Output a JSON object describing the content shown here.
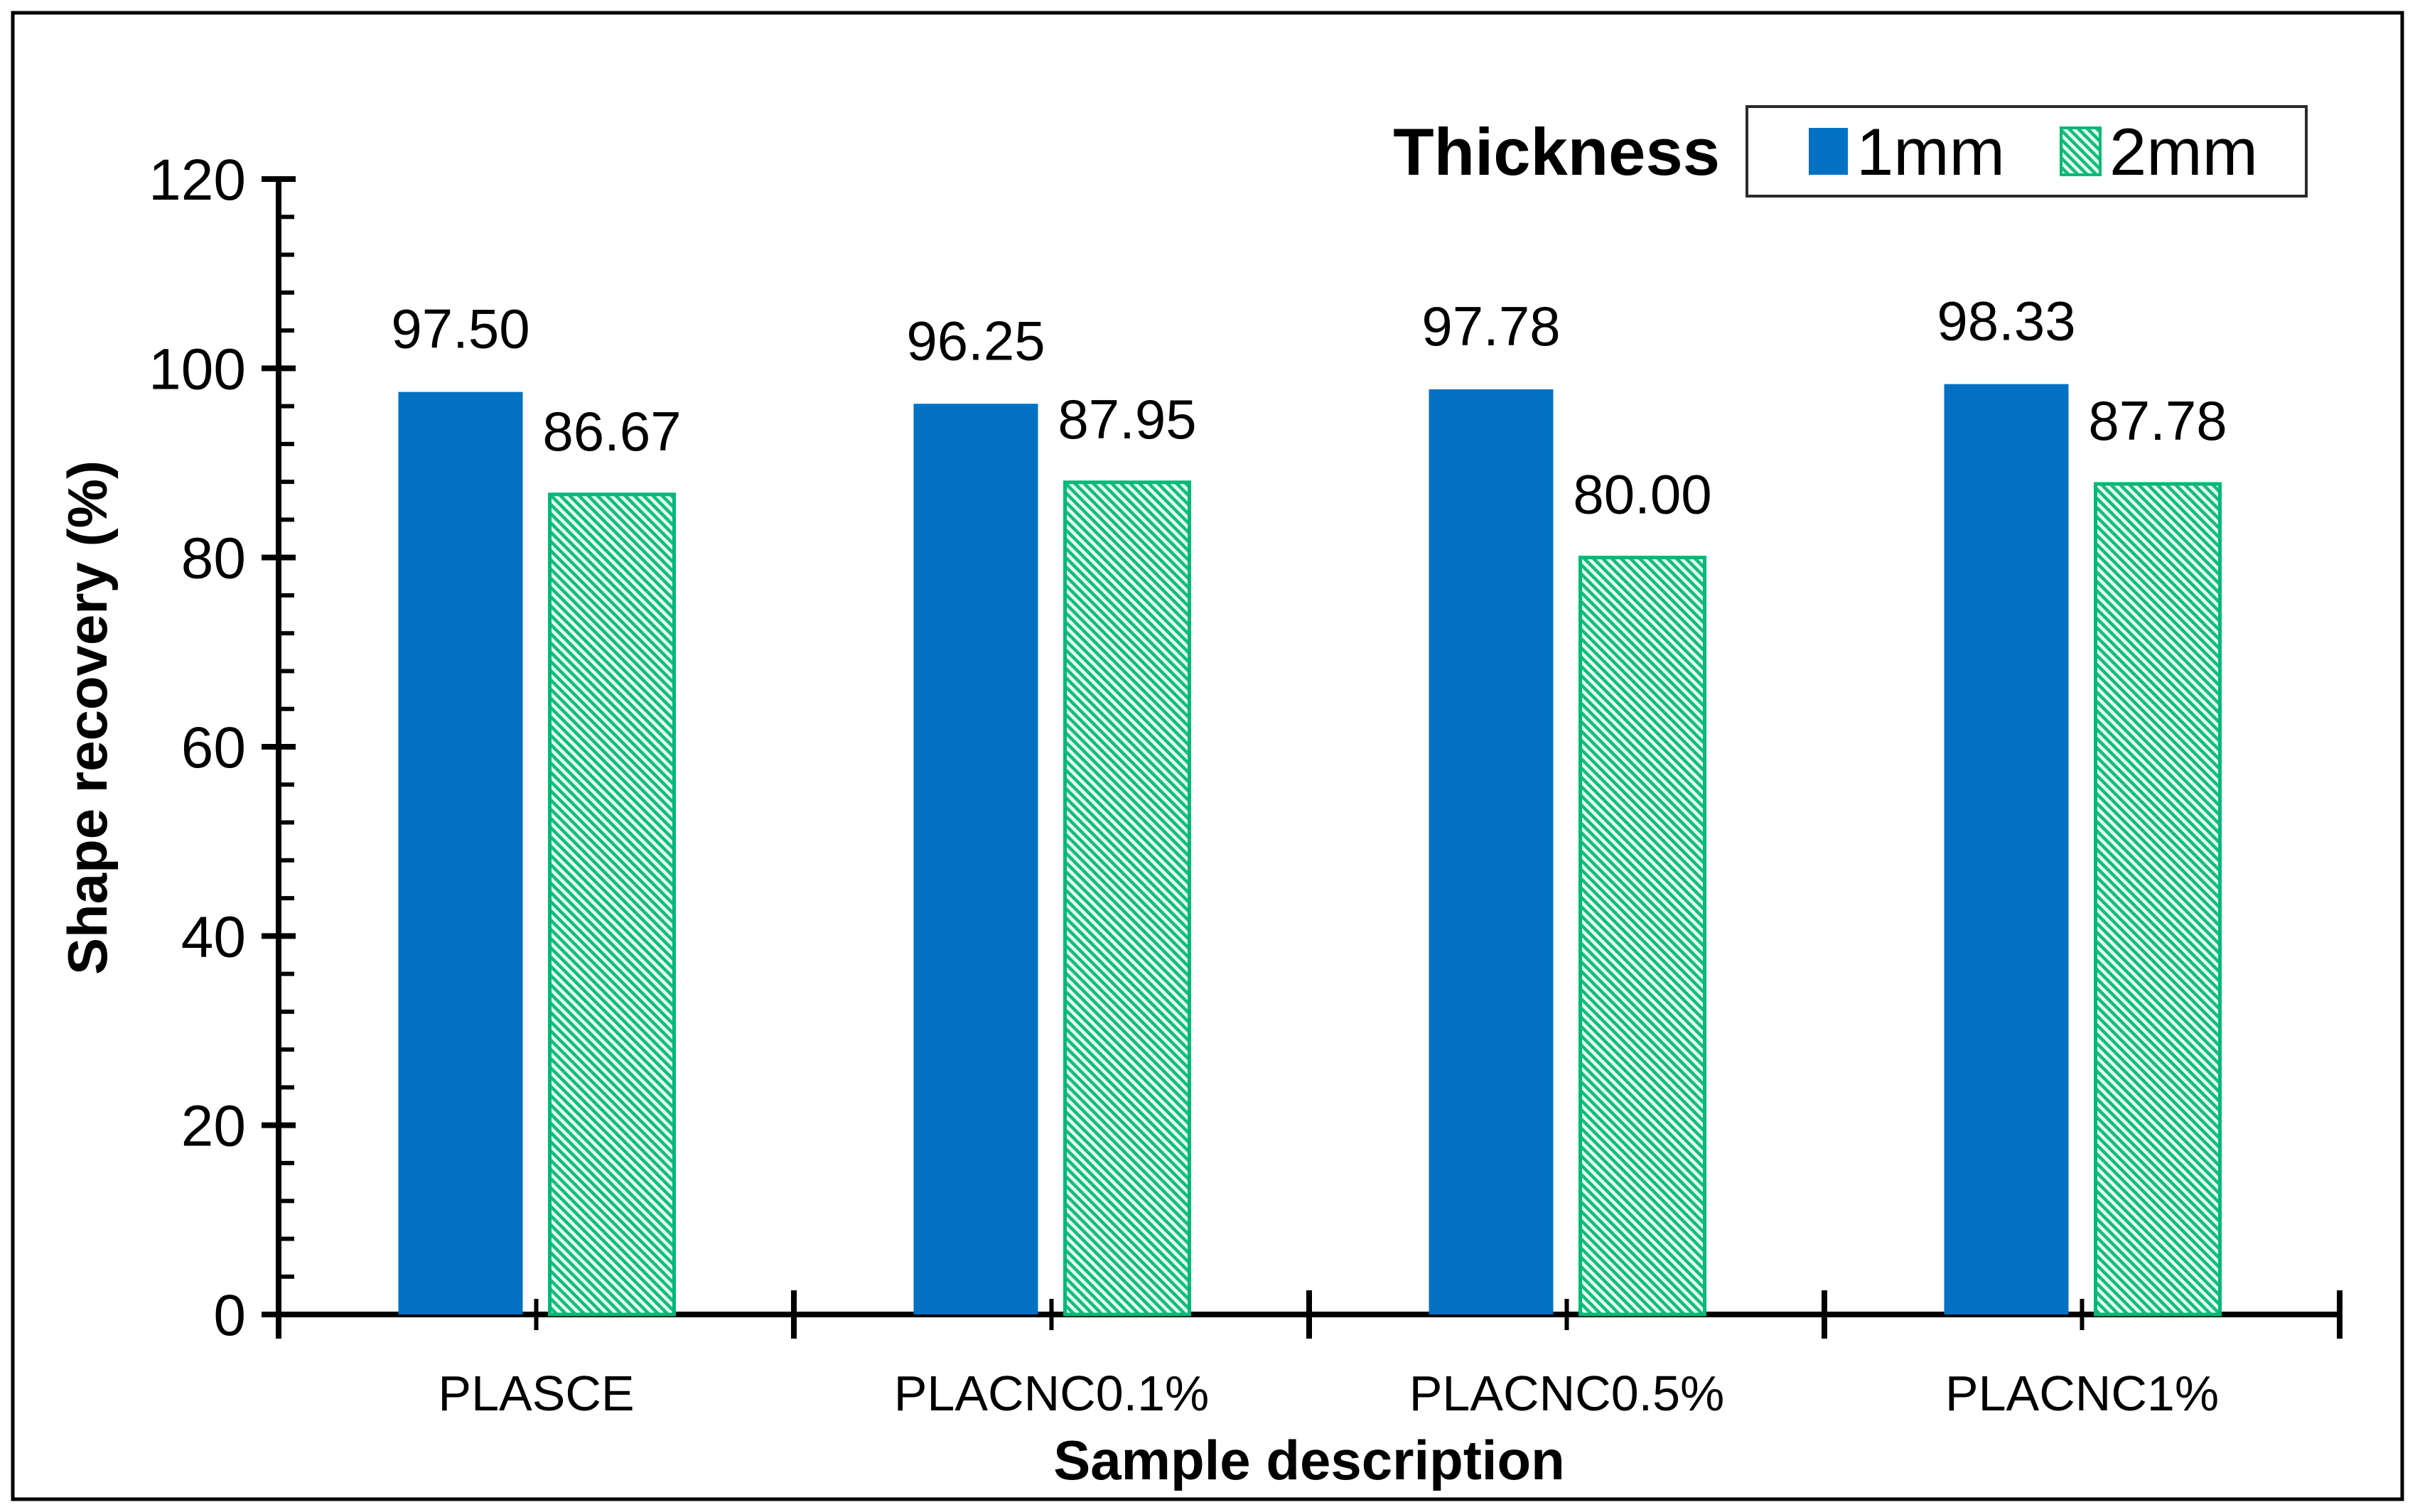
{
  "figure": {
    "background": "#ffffff",
    "border_color": "#000000"
  },
  "legend": {
    "title": "Thickness",
    "items": [
      {
        "label": "1mm",
        "swatch": "solid-square",
        "color": "#0271C2"
      },
      {
        "label": "2mm",
        "swatch": "diagonal-hatch-square",
        "stripe_color": "#12BC81",
        "stripe_background": "#E7FBF1",
        "border_color": "#00B877"
      }
    ]
  },
  "chart_data": {
    "type": "bar",
    "title": "",
    "categories": [
      "PLASCE",
      "PLACNC0.1%",
      "PLACNC0.5%",
      "PLACNC1%"
    ],
    "series": [
      {
        "name": "1mm",
        "values": [
          97.5,
          96.25,
          97.78,
          98.33
        ],
        "style": "solid",
        "color": "#0271C2"
      },
      {
        "name": "2mm",
        "values": [
          86.67,
          87.95,
          80.0,
          87.78
        ],
        "style": "diagonal-hatch",
        "color": "#12BC81"
      }
    ],
    "value_label_format": "2-decimals",
    "xlabel": "Sample description",
    "ylabel": "Shape recovery (%)",
    "ylim": [
      0,
      120
    ],
    "ytick_step": 20,
    "yminor_step": 4,
    "grid": false,
    "legend_position": "top-right",
    "bar_value_labels_shown": true
  }
}
